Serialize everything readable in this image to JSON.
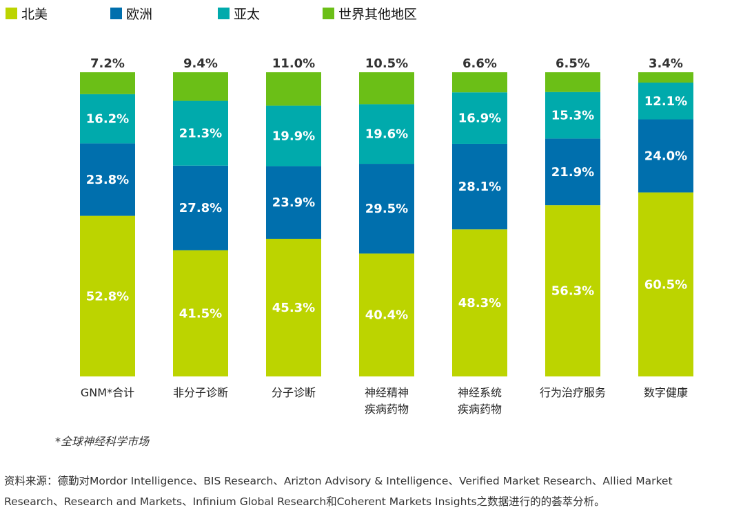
{
  "chart_data": {
    "type": "bar",
    "stacked": true,
    "percent": true,
    "categories": [
      [
        "GNM*合计"
      ],
      [
        "非分子诊断"
      ],
      [
        "分子诊断"
      ],
      [
        "神经精神",
        "疾病药物"
      ],
      [
        "神经系统",
        "疾病药物"
      ],
      [
        "行为治疗服务"
      ],
      [
        "数字健康"
      ]
    ],
    "series": [
      {
        "name": "北美",
        "color": "#bcd400",
        "values": [
          52.8,
          41.5,
          45.3,
          40.4,
          48.3,
          56.3,
          60.5
        ]
      },
      {
        "name": "欧洲",
        "color": "#006fad",
        "values": [
          23.8,
          27.8,
          23.9,
          29.5,
          28.1,
          21.9,
          24.0
        ]
      },
      {
        "name": "亚太",
        "color": "#00aaac",
        "values": [
          16.2,
          21.3,
          19.9,
          19.6,
          16.9,
          15.3,
          12.1
        ]
      },
      {
        "name": "世界其他地区",
        "color": "#6bbf17",
        "values": [
          7.2,
          9.4,
          11.0,
          10.5,
          6.6,
          6.5,
          3.4
        ]
      }
    ],
    "legend_position": "top-left",
    "grid": false
  },
  "footnote": "*全球神经科学市场",
  "source": "资料来源：德勤对Mordor Intelligence、BIS Research、Arizton Advisory & Intelligence、Verified Market Research、Allied Market Research、Research and Markets、Infinium Global Research和Coherent Markets Insights之数据进行的的荟萃分析。"
}
